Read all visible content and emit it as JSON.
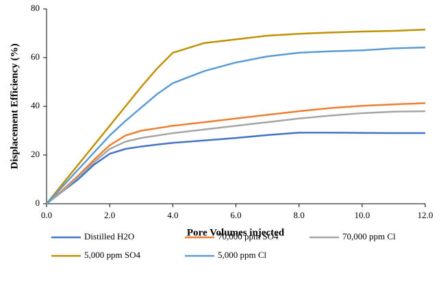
{
  "chart_data": {
    "type": "line",
    "xlabel": "Pore Volumes injected",
    "ylabel": "Displacement Efficiency (%)",
    "x": [
      0,
      0.5,
      1,
      1.5,
      2,
      2.5,
      3,
      3.5,
      4,
      5,
      6,
      7,
      8,
      9,
      10,
      11,
      12
    ],
    "series": [
      {
        "name": "Distilled H2O",
        "color": "#4472c4",
        "values": [
          0,
          5,
          10,
          16,
          20.5,
          22.5,
          23.5,
          24.3,
          25,
          26,
          27,
          28.2,
          29.2,
          29.2,
          29.1,
          29,
          29
        ]
      },
      {
        "name": "70,000 ppm SO4",
        "color": "#ed7d31",
        "values": [
          0,
          5.5,
          11.5,
          18,
          24,
          28,
          30,
          31,
          32,
          33.5,
          35,
          36.5,
          38,
          39.3,
          40.2,
          40.8,
          41.3
        ]
      },
      {
        "name": "70,000 ppm Cl",
        "color": "#a5a5a5",
        "values": [
          0,
          5,
          11,
          17,
          22.5,
          25.5,
          27,
          28,
          29,
          30.5,
          32,
          33.5,
          35,
          36.2,
          37.2,
          37.8,
          38
        ]
      },
      {
        "name": "5,000 ppm SO4",
        "color": "#bf9000",
        "values": [
          0,
          8,
          16,
          24,
          32,
          40,
          48,
          55.5,
          62,
          66,
          67.5,
          69,
          69.8,
          70.3,
          70.7,
          71,
          71.5
        ]
      },
      {
        "name": "5,000 ppm Cl",
        "color": "#5b9bd5",
        "values": [
          0,
          7,
          14,
          21,
          28,
          34,
          39.5,
          45,
          49.5,
          54.5,
          58,
          60.5,
          62,
          62.6,
          63,
          63.8,
          64.2
        ]
      }
    ],
    "xlim": [
      0,
      12
    ],
    "xticks": [
      {
        "value": 0,
        "label": "0.0"
      },
      {
        "value": 2,
        "label": "2.0"
      },
      {
        "value": 4,
        "label": "4.0"
      },
      {
        "value": 6,
        "label": "6.0"
      },
      {
        "value": 8,
        "label": "8.0"
      },
      {
        "value": 10,
        "label": "10.0"
      },
      {
        "value": 12,
        "label": "12.0"
      }
    ],
    "ylim": [
      0,
      80
    ],
    "yticks": [
      0,
      20,
      40,
      60,
      80
    ],
    "grid": false,
    "legend": "bottom"
  }
}
